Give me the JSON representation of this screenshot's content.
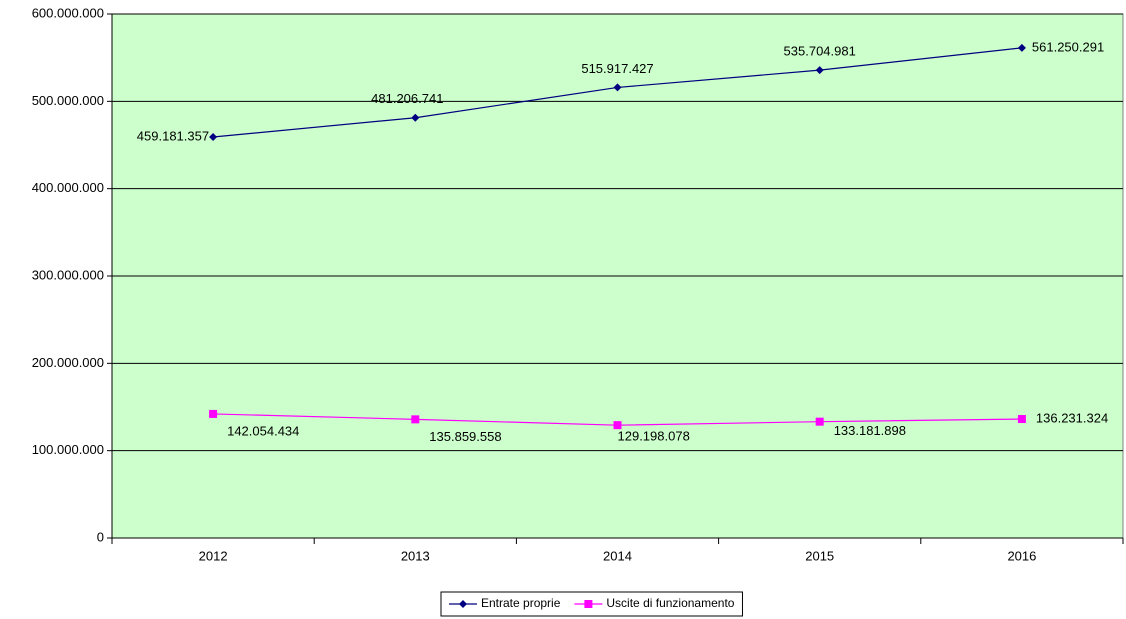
{
  "chart_data": {
    "type": "line",
    "categories": [
      "2012",
      "2013",
      "2014",
      "2015",
      "2016"
    ],
    "series": [
      {
        "name": "Entrate proprie",
        "color": "#000080",
        "marker": "diamond",
        "values": [
          459181357,
          481206741,
          515917427,
          535704981,
          561250291
        ],
        "value_labels": [
          "459.181.357",
          "481.206.741",
          "515.917.427",
          "535.704.981",
          "561.250.291"
        ]
      },
      {
        "name": "Uscite di funzionamento",
        "color": "#ff00ff",
        "marker": "square",
        "values": [
          142054434,
          135859558,
          129198078,
          133181898,
          136231324
        ],
        "value_labels": [
          "142.054.434",
          "135.859.558",
          "129.198.078",
          "133.181.898",
          "136.231.324"
        ]
      }
    ],
    "ylim": [
      0,
      600000000
    ],
    "yticks": [
      0,
      {
        "value": 100000000,
        "label": "100.000.000"
      },
      {
        "value": 200000000,
        "label": "200.000.000"
      },
      {
        "value": 300000000,
        "label": "300.000.000"
      },
      {
        "value": 400000000,
        "label": "400.000.000"
      },
      {
        "value": 500000000,
        "label": "500.000.000"
      },
      {
        "value": 600000000,
        "label": "600.000.000"
      }
    ],
    "grid": true,
    "background": "#ccffcc",
    "legend": "bottom"
  }
}
